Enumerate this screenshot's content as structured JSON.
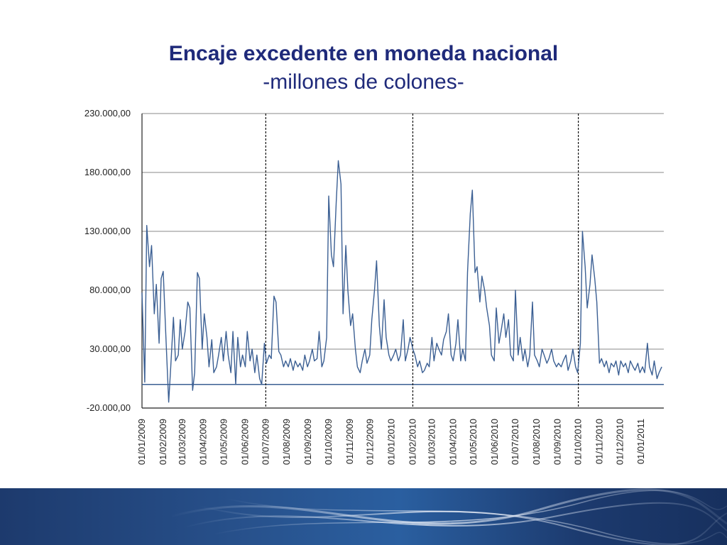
{
  "chart_data": {
    "type": "line",
    "title": "Encaje excedente en moneda nacional",
    "subtitle": "-millones de colones-",
    "xlabel": "",
    "ylabel": "",
    "ylim": [
      -20000,
      230000
    ],
    "yticks": [
      -20000,
      30000,
      80000,
      130000,
      180000,
      230000
    ],
    "ytick_labels": [
      "-20.000,00",
      "30.000,00",
      "80.000,00",
      "130.000,00",
      "180.000,00",
      "230.000,00"
    ],
    "xtick_labels": [
      "01/01/2009",
      "01/02/2009",
      "01/03/2009",
      "01/04/2009",
      "01/05/2009",
      "01/06/2009",
      "01/07/2009",
      "01/08/2009",
      "01/09/2009",
      "01/10/2009",
      "01/11/2009",
      "01/12/2009",
      "01/01/2010",
      "01/02/2010",
      "01/03/2010",
      "01/04/2010",
      "01/05/2010",
      "01/06/2010",
      "01/07/2010",
      "01/08/2010",
      "01/09/2010",
      "01/10/2010",
      "01/11/2010",
      "01/12/2010",
      "01/01/2011"
    ],
    "grid": true,
    "series_color": "#3b5f93",
    "baseline_value": 0,
    "vertical_markers": [
      "01/07/2009",
      "01/02/2010",
      "01/10/2010"
    ],
    "series": [
      {
        "name": "",
        "x": [
          "01/01/2009",
          "05/01/2009",
          "08/01/2009",
          "12/01/2009",
          "15/01/2009",
          "19/01/2009",
          "22/01/2009",
          "26/01/2009",
          "29/01/2009",
          "01/02/2009",
          "05/02/2009",
          "09/02/2009",
          "12/02/2009",
          "16/02/2009",
          "19/02/2009",
          "23/02/2009",
          "26/02/2009",
          "01/03/2009",
          "05/03/2009",
          "09/03/2009",
          "12/03/2009",
          "16/03/2009",
          "19/03/2009",
          "23/03/2009",
          "26/03/2009",
          "30/03/2009",
          "02/04/2009",
          "06/04/2009",
          "09/04/2009",
          "13/04/2009",
          "16/04/2009",
          "20/04/2009",
          "23/04/2009",
          "27/04/2009",
          "30/04/2009",
          "04/05/2009",
          "07/05/2009",
          "11/05/2009",
          "14/05/2009",
          "18/05/2009",
          "21/05/2009",
          "25/05/2009",
          "28/05/2009",
          "01/06/2009",
          "04/06/2009",
          "08/06/2009",
          "11/06/2009",
          "15/06/2009",
          "18/06/2009",
          "22/06/2009",
          "25/06/2009",
          "29/06/2009",
          "02/07/2009",
          "06/07/2009",
          "09/07/2009",
          "13/07/2009",
          "16/07/2009",
          "20/07/2009",
          "23/07/2009",
          "27/07/2009",
          "30/07/2009",
          "03/08/2009",
          "06/08/2009",
          "10/08/2009",
          "13/08/2009",
          "17/08/2009",
          "20/08/2009",
          "24/08/2009",
          "27/08/2009",
          "31/08/2009",
          "03/09/2009",
          "07/09/2009",
          "10/09/2009",
          "14/09/2009",
          "17/09/2009",
          "21/09/2009",
          "24/09/2009",
          "28/09/2009",
          "01/10/2009",
          "05/10/2009",
          "08/10/2009",
          "12/10/2009",
          "15/10/2009",
          "19/10/2009",
          "22/10/2009",
          "26/10/2009",
          "29/10/2009",
          "02/11/2009",
          "05/11/2009",
          "09/11/2009",
          "12/11/2009",
          "16/11/2009",
          "19/11/2009",
          "23/11/2009",
          "26/11/2009",
          "30/11/2009",
          "03/12/2009",
          "07/12/2009",
          "10/12/2009",
          "14/12/2009",
          "17/12/2009",
          "21/12/2009",
          "24/12/2009",
          "28/12/2009",
          "31/12/2009",
          "04/01/2010",
          "07/01/2010",
          "11/01/2010",
          "14/01/2010",
          "18/01/2010",
          "21/01/2010",
          "25/01/2010",
          "28/01/2010",
          "01/02/2010",
          "04/02/2010",
          "08/02/2010",
          "11/02/2010",
          "15/02/2010",
          "18/02/2010",
          "22/02/2010",
          "25/02/2010",
          "01/03/2010",
          "04/03/2010",
          "08/03/2010",
          "11/03/2010",
          "15/03/2010",
          "18/03/2010",
          "22/03/2010",
          "25/03/2010",
          "29/03/2010",
          "01/04/2010",
          "05/04/2010",
          "08/04/2010",
          "12/04/2010",
          "15/04/2010",
          "19/04/2010",
          "22/04/2010",
          "26/04/2010",
          "29/04/2010",
          "03/05/2010",
          "06/05/2010",
          "10/05/2010",
          "13/05/2010",
          "17/05/2010",
          "20/05/2010",
          "24/05/2010",
          "27/05/2010",
          "31/05/2010",
          "03/06/2010",
          "07/06/2010",
          "10/06/2010",
          "14/06/2010",
          "17/06/2010",
          "21/06/2010",
          "24/06/2010",
          "28/06/2010",
          "01/07/2010",
          "05/07/2010",
          "08/07/2010",
          "12/07/2010",
          "15/07/2010",
          "19/07/2010",
          "22/07/2010",
          "26/07/2010",
          "29/07/2010",
          "02/08/2010",
          "05/08/2010",
          "09/08/2010",
          "12/08/2010",
          "16/08/2010",
          "19/08/2010",
          "23/08/2010",
          "26/08/2010",
          "30/08/2010",
          "02/09/2010",
          "06/09/2010",
          "09/09/2010",
          "13/09/2010",
          "16/09/2010",
          "20/09/2010",
          "23/09/2010",
          "27/09/2010",
          "30/09/2010",
          "04/10/2010",
          "07/10/2010",
          "11/10/2010",
          "14/10/2010",
          "18/10/2010",
          "21/10/2010",
          "25/10/2010",
          "28/10/2010",
          "01/11/2010",
          "04/11/2010",
          "08/11/2010",
          "11/11/2010",
          "15/11/2010",
          "18/11/2010",
          "22/11/2010",
          "25/11/2010",
          "29/11/2010",
          "02/12/2010",
          "06/12/2010",
          "09/12/2010",
          "13/12/2010",
          "16/12/2010",
          "20/12/2010",
          "23/12/2010",
          "27/12/2010",
          "30/12/2010",
          "03/01/2011",
          "06/01/2011",
          "10/01/2011",
          "13/01/2011",
          "17/01/2011",
          "20/01/2011",
          "24/01/2011",
          "27/01/2011",
          "31/01/2011"
        ],
        "values": [
          78000,
          2000,
          135000,
          100000,
          118000,
          60000,
          85000,
          35000,
          90000,
          96000,
          40000,
          -15000,
          15000,
          57000,
          20000,
          25000,
          55000,
          30000,
          45000,
          70000,
          65000,
          -5000,
          10000,
          95000,
          90000,
          30000,
          60000,
          40000,
          15000,
          38000,
          10000,
          15000,
          25000,
          40000,
          20000,
          45000,
          25000,
          10000,
          45000,
          0,
          40000,
          15000,
          25000,
          15000,
          45000,
          20000,
          30000,
          10000,
          25000,
          5000,
          0,
          35000,
          18000,
          25000,
          22000,
          75000,
          70000,
          28000,
          25000,
          15000,
          20000,
          15000,
          22000,
          12000,
          20000,
          15000,
          18000,
          12000,
          25000,
          15000,
          20000,
          30000,
          20000,
          22000,
          45000,
          15000,
          20000,
          40000,
          160000,
          110000,
          100000,
          155000,
          190000,
          170000,
          60000,
          118000,
          80000,
          50000,
          60000,
          30000,
          15000,
          10000,
          20000,
          30000,
          18000,
          25000,
          55000,
          80000,
          105000,
          50000,
          30000,
          72000,
          40000,
          25000,
          20000,
          25000,
          30000,
          20000,
          25000,
          55000,
          20000,
          30000,
          40000,
          30000,
          25000,
          15000,
          20000,
          10000,
          12000,
          18000,
          15000,
          40000,
          20000,
          35000,
          30000,
          25000,
          38000,
          45000,
          60000,
          25000,
          20000,
          35000,
          55000,
          20000,
          30000,
          20000,
          95000,
          145000,
          165000,
          95000,
          100000,
          70000,
          92000,
          80000,
          65000,
          50000,
          25000,
          20000,
          65000,
          35000,
          45000,
          60000,
          40000,
          55000,
          25000,
          20000,
          80000,
          25000,
          40000,
          20000,
          30000,
          15000,
          25000,
          70000,
          25000,
          20000,
          15000,
          30000,
          25000,
          18000,
          22000,
          30000,
          20000,
          15000,
          18000,
          15000,
          20000,
          25000,
          12000,
          20000,
          30000,
          15000,
          10000,
          35000,
          130000,
          100000,
          65000,
          85000,
          110000,
          90000,
          70000,
          18000,
          22000,
          15000,
          20000,
          10000,
          18000,
          15000,
          20000,
          8000,
          20000,
          15000,
          18000,
          10000,
          20000,
          15000,
          12000,
          18000,
          10000,
          15000,
          10000,
          35000,
          15000,
          8000,
          20000,
          5000,
          10000,
          15000
        ]
      }
    ]
  }
}
